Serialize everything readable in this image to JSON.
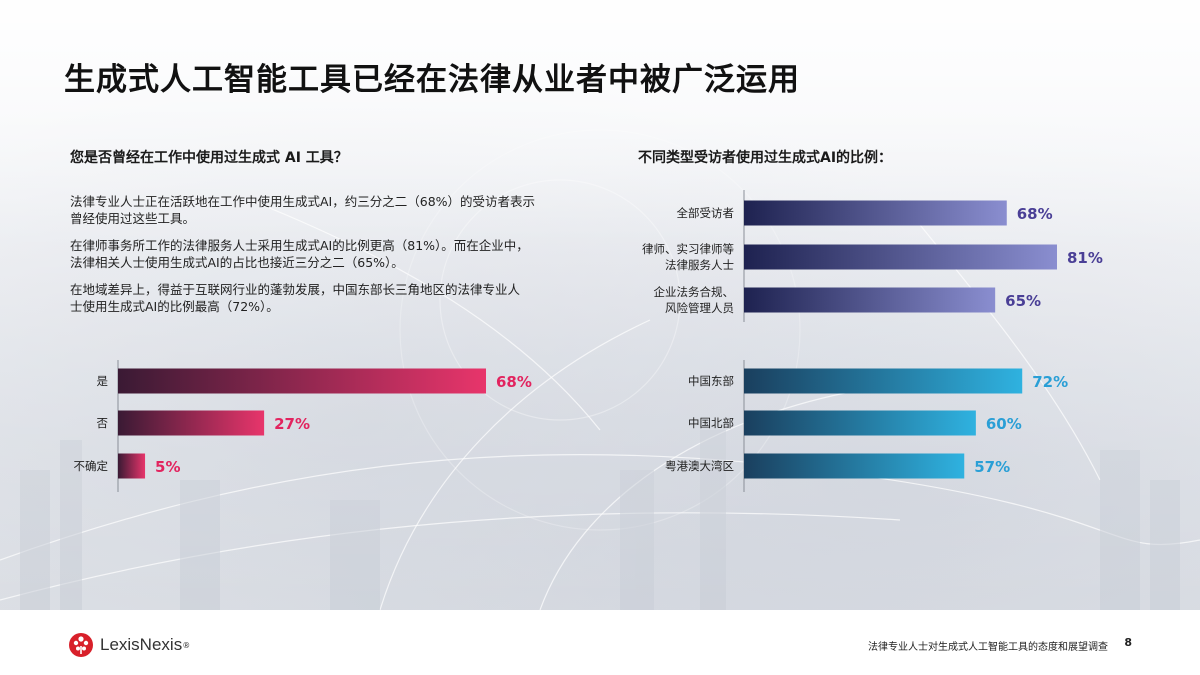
{
  "title": "生成式人工智能工具已经在法律从业者中被广泛运用",
  "left": {
    "heading": "您是否曾经在工作中使用过生成式 AI 工具？",
    "paragraphs": [
      [
        "法律专业人士正在活跃地在工作中使用生成式AI，约三分之二（68%）的受访者表示",
        "曾经使用过这些工具。"
      ],
      [
        "在律师事务所工作的法律服务人士采用生成式AI的比例更高（81%）。而在企业中，",
        "法律相关人士使用生成式AI的占比也接近三分之二（65%）。"
      ],
      [
        "在地域差异上，得益于互联网行业的蓬勃发展，中国东部长三角地区的法律专业人",
        "士使用生成式AI的比例最高（72%）。"
      ]
    ]
  },
  "right": {
    "heading": "不同类型受访者使用过生成式AI的比例："
  },
  "chart_data": [
    {
      "type": "bar",
      "orientation": "horizontal",
      "title": "您是否曾经在工作中使用过生成式 AI 工具？",
      "categories": [
        "是",
        "否",
        "不确定"
      ],
      "values": [
        68,
        27,
        5
      ],
      "labels": [
        "68%",
        "27%",
        "5%"
      ],
      "unit": "%",
      "xlim": [
        0,
        100
      ],
      "colors": {
        "start": "#3a1a34",
        "end": "#e8356b",
        "label": "#e2245f"
      }
    },
    {
      "type": "bar",
      "orientation": "horizontal",
      "title": "不同类型受访者使用过生成式AI的比例：",
      "groups": [
        {
          "categories": [
            [
              "全部受访者"
            ],
            [
              "律师、实习律师等",
              "法律服务人士"
            ],
            [
              "企业法务合规、",
              "风险管理人员"
            ]
          ],
          "values": [
            68,
            81,
            65
          ],
          "labels": [
            "68%",
            "81%",
            "65%"
          ],
          "colors": {
            "start": "#1e2250",
            "end": "#8a8ed0",
            "label": "#4a3f96"
          }
        },
        {
          "categories": [
            [
              "中国东部"
            ],
            [
              "中国北部"
            ],
            [
              "粤港澳大湾区"
            ]
          ],
          "values": [
            72,
            60,
            57
          ],
          "labels": [
            "72%",
            "60%",
            "57%"
          ],
          "colors": {
            "start": "#1a3f5e",
            "end": "#2fb2e0",
            "label": "#2a9fd6"
          }
        }
      ],
      "unit": "%",
      "xlim": [
        0,
        100
      ]
    }
  ],
  "footer": {
    "brand": "LexisNexis",
    "registered": "®",
    "report_title": "法律专业人士对生成式人工智能工具的态度和展望调查",
    "page": "8"
  }
}
